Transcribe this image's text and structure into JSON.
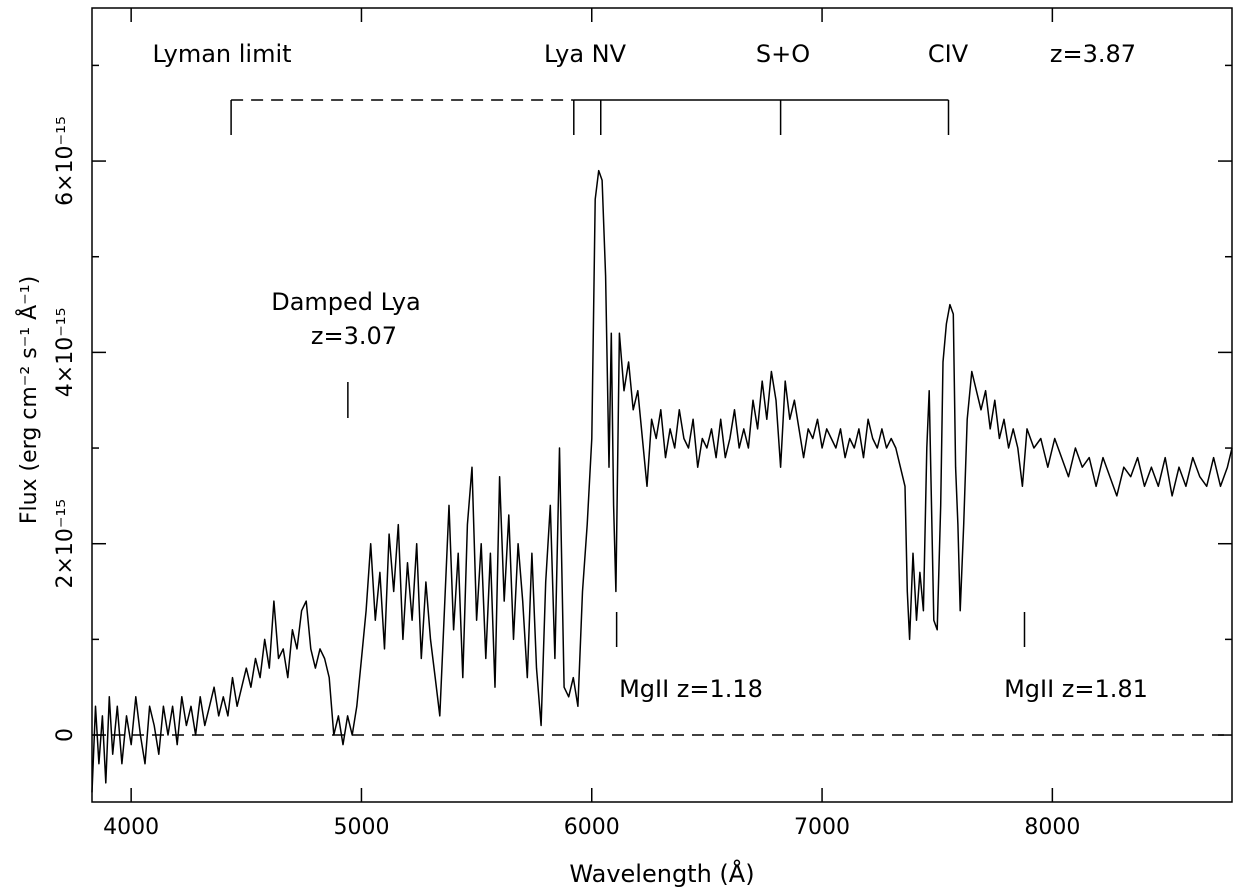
{
  "chart_data": {
    "type": "line",
    "x_label": "Wavelength (Å)",
    "y_label": "Flux (erg cm⁻² s⁻¹ Å⁻¹)",
    "xlim": [
      3830,
      8780
    ],
    "ylim": [
      -7e-16,
      7.6e-15
    ],
    "xticks": [
      4000,
      5000,
      6000,
      7000,
      8000
    ],
    "yticks": [
      0,
      {
        "value": 2e-15,
        "label": "2×10⁻¹⁵"
      },
      {
        "value": 4e-15,
        "label": "4×10⁻¹⁵"
      },
      {
        "value": 6e-15,
        "label": "6×10⁻¹⁵"
      }
    ],
    "yminorticks": [
      1e-15,
      3e-15,
      5e-15,
      7e-15
    ],
    "hline": 0,
    "series": [
      {
        "color": "#000000",
        "x": [
          3830,
          3845,
          3860,
          3875,
          3890,
          3905,
          3920,
          3940,
          3960,
          3980,
          4000,
          4020,
          4040,
          4060,
          4080,
          4100,
          4120,
          4140,
          4160,
          4180,
          4200,
          4220,
          4240,
          4260,
          4280,
          4300,
          4320,
          4340,
          4360,
          4380,
          4400,
          4420,
          4440,
          4460,
          4480,
          4500,
          4520,
          4540,
          4560,
          4580,
          4600,
          4620,
          4640,
          4660,
          4680,
          4700,
          4720,
          4740,
          4760,
          4780,
          4800,
          4820,
          4840,
          4860,
          4880,
          4900,
          4920,
          4940,
          4960,
          4980,
          5000,
          5020,
          5040,
          5060,
          5080,
          5100,
          5120,
          5140,
          5160,
          5180,
          5200,
          5220,
          5240,
          5260,
          5280,
          5300,
          5320,
          5340,
          5360,
          5380,
          5400,
          5420,
          5440,
          5460,
          5480,
          5500,
          5520,
          5540,
          5560,
          5580,
          5600,
          5620,
          5640,
          5660,
          5680,
          5700,
          5720,
          5740,
          5760,
          5780,
          5800,
          5820,
          5840,
          5860,
          5880,
          5900,
          5920,
          5940,
          5960,
          5980,
          6000,
          6015,
          6030,
          6045,
          6060,
          6075,
          6085,
          6095,
          6105,
          6120,
          6140,
          6160,
          6180,
          6200,
          6220,
          6240,
          6260,
          6280,
          6300,
          6320,
          6340,
          6360,
          6380,
          6400,
          6420,
          6440,
          6460,
          6480,
          6500,
          6520,
          6540,
          6560,
          6580,
          6600,
          6620,
          6640,
          6660,
          6680,
          6700,
          6720,
          6740,
          6760,
          6780,
          6800,
          6820,
          6840,
          6860,
          6880,
          6900,
          6920,
          6940,
          6960,
          6980,
          7000,
          7020,
          7040,
          7060,
          7080,
          7100,
          7120,
          7140,
          7160,
          7180,
          7200,
          7220,
          7240,
          7260,
          7280,
          7300,
          7320,
          7340,
          7360,
          7370,
          7380,
          7395,
          7410,
          7425,
          7440,
          7455,
          7465,
          7475,
          7485,
          7500,
          7515,
          7525,
          7540,
          7555,
          7570,
          7580,
          7590,
          7600,
          7615,
          7630,
          7650,
          7670,
          7690,
          7710,
          7730,
          7750,
          7770,
          7790,
          7810,
          7830,
          7850,
          7870,
          7890,
          7920,
          7950,
          7980,
          8010,
          8040,
          8070,
          8100,
          8130,
          8160,
          8190,
          8220,
          8250,
          8280,
          8310,
          8340,
          8370,
          8400,
          8430,
          8460,
          8490,
          8520,
          8550,
          8580,
          8610,
          8640,
          8670,
          8700,
          8730,
          8760,
          8780
        ],
        "values": [
          -6e-16,
          3e-16,
          -3e-16,
          2e-16,
          -5e-16,
          4e-16,
          -2e-16,
          3e-16,
          -3e-16,
          2e-16,
          -1e-16,
          4e-16,
          0,
          -3e-16,
          3e-16,
          1e-16,
          -2e-16,
          3e-16,
          0,
          3e-16,
          -1e-16,
          4e-16,
          1e-16,
          3e-16,
          0,
          4e-16,
          1e-16,
          3e-16,
          5e-16,
          2e-16,
          4e-16,
          2e-16,
          6e-16,
          3e-16,
          5e-16,
          7e-16,
          5e-16,
          8e-16,
          6e-16,
          1e-15,
          7e-16,
          1.4e-15,
          8e-16,
          9e-16,
          6e-16,
          1.1e-15,
          9e-16,
          1.3e-15,
          1.4e-15,
          9e-16,
          7e-16,
          9e-16,
          8e-16,
          6e-16,
          0,
          2e-16,
          -1e-16,
          2e-16,
          0,
          3e-16,
          8e-16,
          1.3e-15,
          2e-15,
          1.2e-15,
          1.7e-15,
          9e-16,
          2.1e-15,
          1.5e-15,
          2.2e-15,
          1e-15,
          1.8e-15,
          1.2e-15,
          2e-15,
          8e-16,
          1.6e-15,
          1e-15,
          6e-16,
          2e-16,
          1.3e-15,
          2.4e-15,
          1.1e-15,
          1.9e-15,
          6e-16,
          2.2e-15,
          2.8e-15,
          1.2e-15,
          2e-15,
          8e-16,
          1.9e-15,
          5e-16,
          2.7e-15,
          1.4e-15,
          2.3e-15,
          1e-15,
          2e-15,
          1.4e-15,
          6e-16,
          1.9e-15,
          7e-16,
          1e-16,
          1.6e-15,
          2.4e-15,
          8e-16,
          3e-15,
          5e-16,
          4e-16,
          6e-16,
          3e-16,
          1.5e-15,
          2.2e-15,
          3.1e-15,
          5.6e-15,
          5.9e-15,
          5.8e-15,
          4.8e-15,
          2.8e-15,
          4.2e-15,
          2.4e-15,
          1.5e-15,
          4.2e-15,
          3.6e-15,
          3.9e-15,
          3.4e-15,
          3.6e-15,
          3.1e-15,
          2.6e-15,
          3.3e-15,
          3.1e-15,
          3.4e-15,
          2.9e-15,
          3.2e-15,
          3e-15,
          3.4e-15,
          3.1e-15,
          3e-15,
          3.3e-15,
          2.8e-15,
          3.1e-15,
          3e-15,
          3.2e-15,
          2.9e-15,
          3.3e-15,
          2.9e-15,
          3.1e-15,
          3.4e-15,
          3e-15,
          3.2e-15,
          3e-15,
          3.5e-15,
          3.2e-15,
          3.7e-15,
          3.3e-15,
          3.8e-15,
          3.5e-15,
          2.8e-15,
          3.7e-15,
          3.3e-15,
          3.5e-15,
          3.2e-15,
          2.9e-15,
          3.2e-15,
          3.1e-15,
          3.3e-15,
          3e-15,
          3.2e-15,
          3.1e-15,
          3e-15,
          3.2e-15,
          2.9e-15,
          3.1e-15,
          3e-15,
          3.2e-15,
          2.9e-15,
          3.3e-15,
          3.1e-15,
          3e-15,
          3.2e-15,
          3e-15,
          3.1e-15,
          3e-15,
          2.8e-15,
          2.6e-15,
          1.5e-15,
          1e-15,
          1.9e-15,
          1.2e-15,
          1.7e-15,
          1.3e-15,
          3e-15,
          3.6e-15,
          2.4e-15,
          1.2e-15,
          1.1e-15,
          2.4e-15,
          3.9e-15,
          4.3e-15,
          4.5e-15,
          4.4e-15,
          2.8e-15,
          2.2e-15,
          1.3e-15,
          2.2e-15,
          3.3e-15,
          3.8e-15,
          3.6e-15,
          3.4e-15,
          3.6e-15,
          3.2e-15,
          3.5e-15,
          3.1e-15,
          3.3e-15,
          3e-15,
          3.2e-15,
          3e-15,
          2.6e-15,
          3.2e-15,
          3e-15,
          3.1e-15,
          2.8e-15,
          3.1e-15,
          2.9e-15,
          2.7e-15,
          3e-15,
          2.8e-15,
          2.9e-15,
          2.6e-15,
          2.9e-15,
          2.7e-15,
          2.5e-15,
          2.8e-15,
          2.7e-15,
          2.9e-15,
          2.6e-15,
          2.8e-15,
          2.6e-15,
          2.9e-15,
          2.5e-15,
          2.8e-15,
          2.6e-15,
          2.9e-15,
          2.7e-15,
          2.6e-15,
          2.9e-15,
          2.6e-15,
          2.8e-15,
          3e-15
        ]
      }
    ],
    "line_ids": {
      "labels": [
        "Lyman limit",
        "Lya NV",
        "S+O",
        "CIV",
        "z=3.87"
      ],
      "wavelengths": [
        4434,
        5922,
        6039,
        6820,
        7549
      ]
    },
    "absorbers": {
      "labels": [
        "Damped Lya",
        "z=3.07",
        "MgII z=1.18",
        "MgII z=1.81"
      ],
      "wavelengths": [
        4941,
        6108,
        7879
      ]
    }
  }
}
